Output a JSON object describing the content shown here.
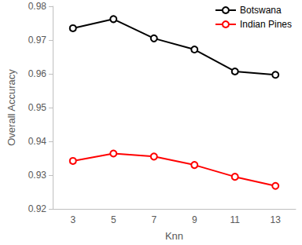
{
  "chart_data": {
    "type": "line",
    "x_label": "Knn",
    "y_label": "Overall Accuracy",
    "categories": [
      "3",
      "5",
      "7",
      "9",
      "11",
      "13"
    ],
    "series": [
      {
        "name": "Botswana",
        "color": "#000000",
        "marker": "open_circle",
        "values": [
          0.9735,
          0.9762,
          0.9705,
          0.9672,
          0.9607,
          0.9597
        ]
      },
      {
        "name": "Indian Pines",
        "color": "#ff0000",
        "marker": "open_circle",
        "values": [
          0.9342,
          0.9364,
          0.9355,
          0.933,
          0.9295,
          0.9268
        ]
      }
    ],
    "ylim": [
      0.92,
      0.98
    ],
    "yticks": [
      0.92,
      0.93,
      0.94,
      0.95,
      0.96,
      0.97,
      0.98
    ],
    "grid": false,
    "legend": "top-right"
  }
}
